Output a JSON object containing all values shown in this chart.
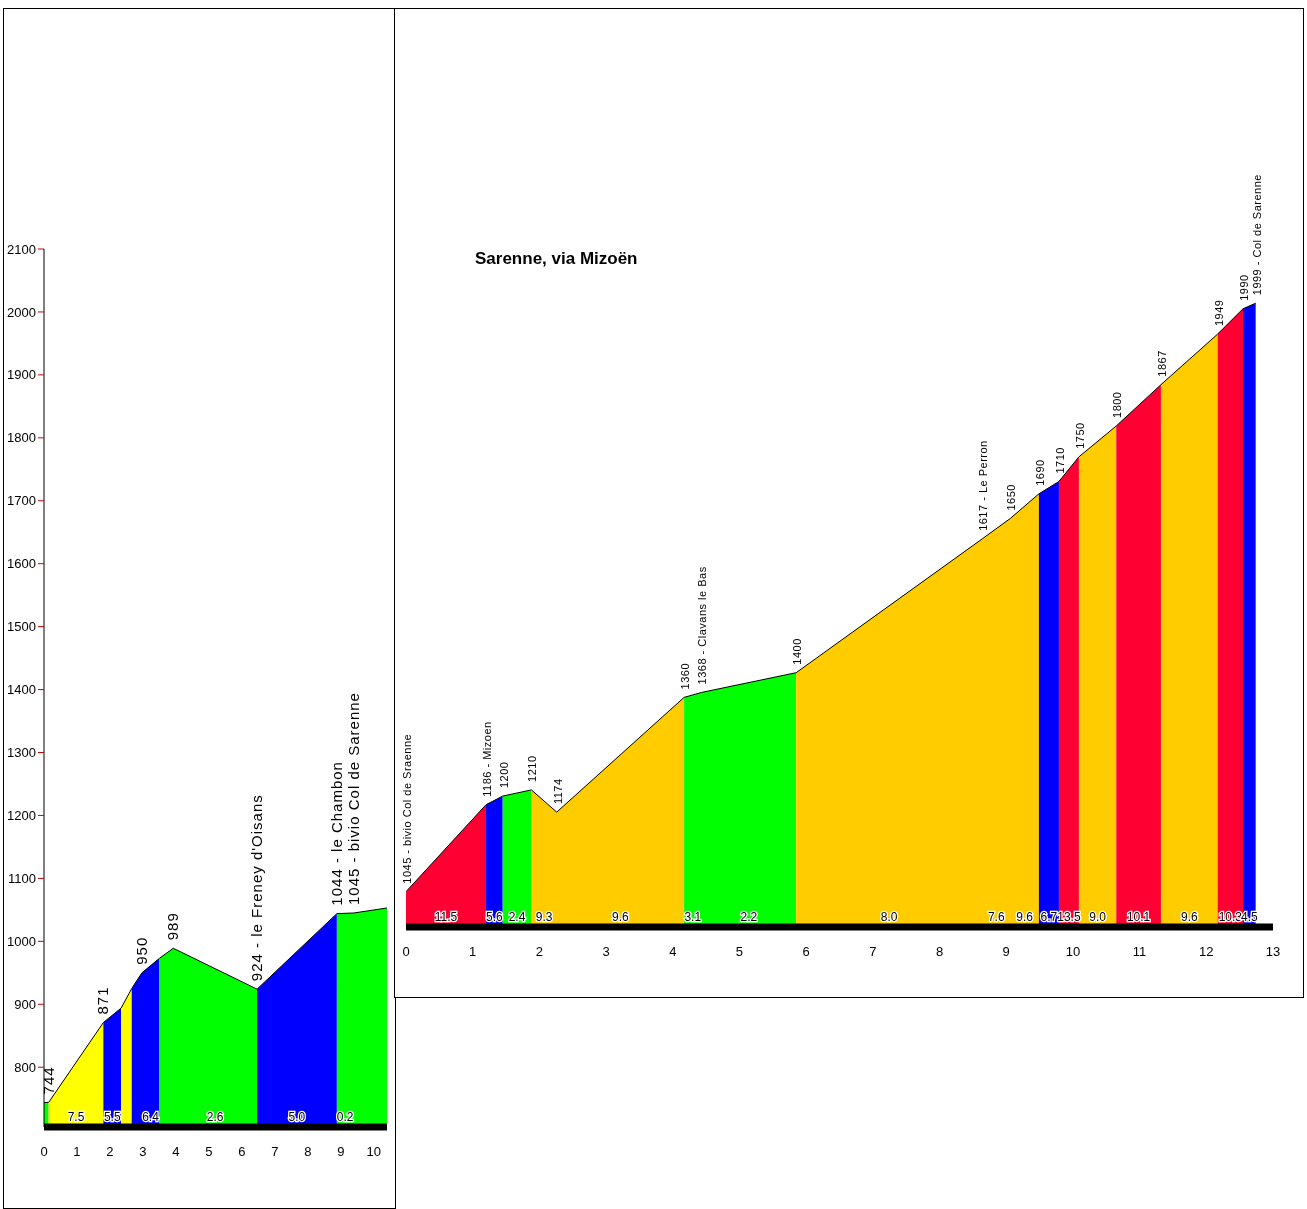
{
  "chart_data": [
    {
      "type": "area",
      "xlim": [
        0,
        10.4
      ],
      "xticks": [
        0,
        1,
        2,
        3,
        4,
        5,
        6,
        7,
        8,
        9,
        10
      ],
      "ylim": [
        705,
        2100
      ],
      "yticks": [
        800,
        900,
        1000,
        1100,
        1200,
        1300,
        1400,
        1500,
        1600,
        1700,
        1800,
        1900,
        2000,
        2100
      ],
      "grid": false,
      "series": [
        {
          "color": "#00ff00",
          "x": [
            0,
            0.14
          ],
          "values": [
            744,
            744
          ],
          "value_labels": [
            null,
            "744"
          ]
        },
        {
          "color": "#ffff00",
          "x": [
            0.14,
            1.8
          ],
          "values": [
            744,
            871
          ],
          "value_labels": [
            null,
            "871"
          ]
        },
        {
          "color": "#0000ff",
          "x": [
            1.8,
            2.34
          ],
          "values": [
            871,
            894
          ],
          "value_labels": [
            null,
            null
          ]
        },
        {
          "color": "#ffff00",
          "x": [
            2.34,
            2.66
          ],
          "values": [
            894,
            925
          ],
          "value_labels": [
            null,
            null
          ]
        },
        {
          "color": "#0000ff",
          "x": [
            2.66,
            2.97,
            3.5
          ],
          "values": [
            925,
            950,
            973
          ],
          "value_labels": [
            null,
            "950",
            null
          ]
        },
        {
          "color": "#00ff00",
          "x": [
            3.5,
            3.92,
            6.46
          ],
          "values": [
            973,
            989,
            924
          ],
          "value_labels": [
            null,
            "989",
            "924 - le Freney d'Oisans"
          ]
        },
        {
          "color": "#0000ff",
          "x": [
            6.46,
            8.88
          ],
          "values": [
            924,
            1044
          ],
          "value_labels": [
            null,
            "1044 - le Chambon"
          ]
        },
        {
          "color": "#00ff00",
          "x": [
            8.88,
            9.39,
            10.4
          ],
          "values": [
            1044,
            1045,
            1053
          ],
          "value_labels": [
            null,
            "1045 - bivio Col de Sarenne",
            null
          ]
        }
      ],
      "annotations": [
        {
          "text": "7.5",
          "x": 0.97,
          "y": 705
        },
        {
          "text": "5.5",
          "x": 2.07,
          "y": 705
        },
        {
          "text": "6.4",
          "x": 3.23,
          "y": 705
        },
        {
          "text": "2.6",
          "x": 5.19,
          "y": 705
        },
        {
          "text": "5.0",
          "x": 7.67,
          "y": 705
        },
        {
          "text": "0.2",
          "x": 9.13,
          "y": 705
        }
      ]
    },
    {
      "type": "area",
      "title": "Sarenne, via Mizoën",
      "xlim": [
        0,
        13
      ],
      "xticks": [
        0,
        1,
        2,
        3,
        4,
        5,
        6,
        7,
        8,
        9,
        10,
        11,
        12,
        13
      ],
      "tick_labels": "x",
      "grid": false,
      "series": [
        {
          "color": "#ff0033",
          "x": [
            0,
            1.2
          ],
          "values": [
            1045,
            1186
          ],
          "value_labels": [
            "1045 - bivio Col de Sraenne",
            "1186 - Mizoen"
          ]
        },
        {
          "color": "#0000ff",
          "x": [
            1.2,
            1.45
          ],
          "values": [
            1186,
            1200
          ],
          "value_labels": [
            null,
            "1200"
          ]
        },
        {
          "color": "#00ff00",
          "x": [
            1.45,
            1.88
          ],
          "values": [
            1200,
            1210
          ],
          "value_labels": [
            null,
            "1210"
          ]
        },
        {
          "color": "#ffcc00",
          "x": [
            1.88,
            2.26,
            4.17
          ],
          "values": [
            1210,
            1174,
            1360
          ],
          "value_labels": [
            null,
            "1174",
            "1360"
          ]
        },
        {
          "color": "#00ff00",
          "x": [
            4.17,
            4.43,
            5.85
          ],
          "values": [
            1360,
            1368,
            1400
          ],
          "value_labels": [
            null,
            "1368 - Clavans le Bas",
            "1400"
          ]
        },
        {
          "color": "#ffcc00",
          "x": [
            5.85,
            8.64,
            9.06,
            9.49
          ],
          "values": [
            1400,
            1617,
            1650,
            1690
          ],
          "value_labels": [
            null,
            "1617 - Le Perron",
            "1650",
            "1690"
          ]
        },
        {
          "color": "#0000ff",
          "x": [
            9.49,
            9.79
          ],
          "values": [
            1690,
            1710
          ],
          "value_labels": [
            null,
            "1710"
          ]
        },
        {
          "color": "#ff0033",
          "x": [
            9.79,
            10.09
          ],
          "values": [
            1710,
            1750
          ],
          "value_labels": [
            null,
            "1750"
          ]
        },
        {
          "color": "#ffcc00",
          "x": [
            10.09,
            10.65
          ],
          "values": [
            1750,
            1800
          ],
          "value_labels": [
            null,
            "1800"
          ]
        },
        {
          "color": "#ff0033",
          "x": [
            10.65,
            11.32
          ],
          "values": [
            1800,
            1867
          ],
          "value_labels": [
            null,
            "1867"
          ]
        },
        {
          "color": "#ffcc00",
          "x": [
            11.32,
            12.17
          ],
          "values": [
            1867,
            1949
          ],
          "value_labels": [
            null,
            "1949"
          ]
        },
        {
          "color": "#ff0033",
          "x": [
            12.17,
            12.55
          ],
          "values": [
            1949,
            1990
          ],
          "value_labels": [
            null,
            "1990"
          ]
        },
        {
          "color": "#0000ff",
          "x": [
            12.55,
            12.74
          ],
          "values": [
            1990,
            1999
          ],
          "value_labels": [
            null,
            "1999 - Col de Sarenne"
          ]
        }
      ],
      "annotations": [
        "11.5",
        "5.6",
        "2.4",
        "9.3",
        "9.6",
        "3.1",
        "2.2",
        "8.0",
        "7.6",
        "9.6",
        "6.7",
        "13.5",
        "9.0",
        "10.1",
        "9.6",
        "10.3",
        "4.5"
      ]
    }
  ]
}
